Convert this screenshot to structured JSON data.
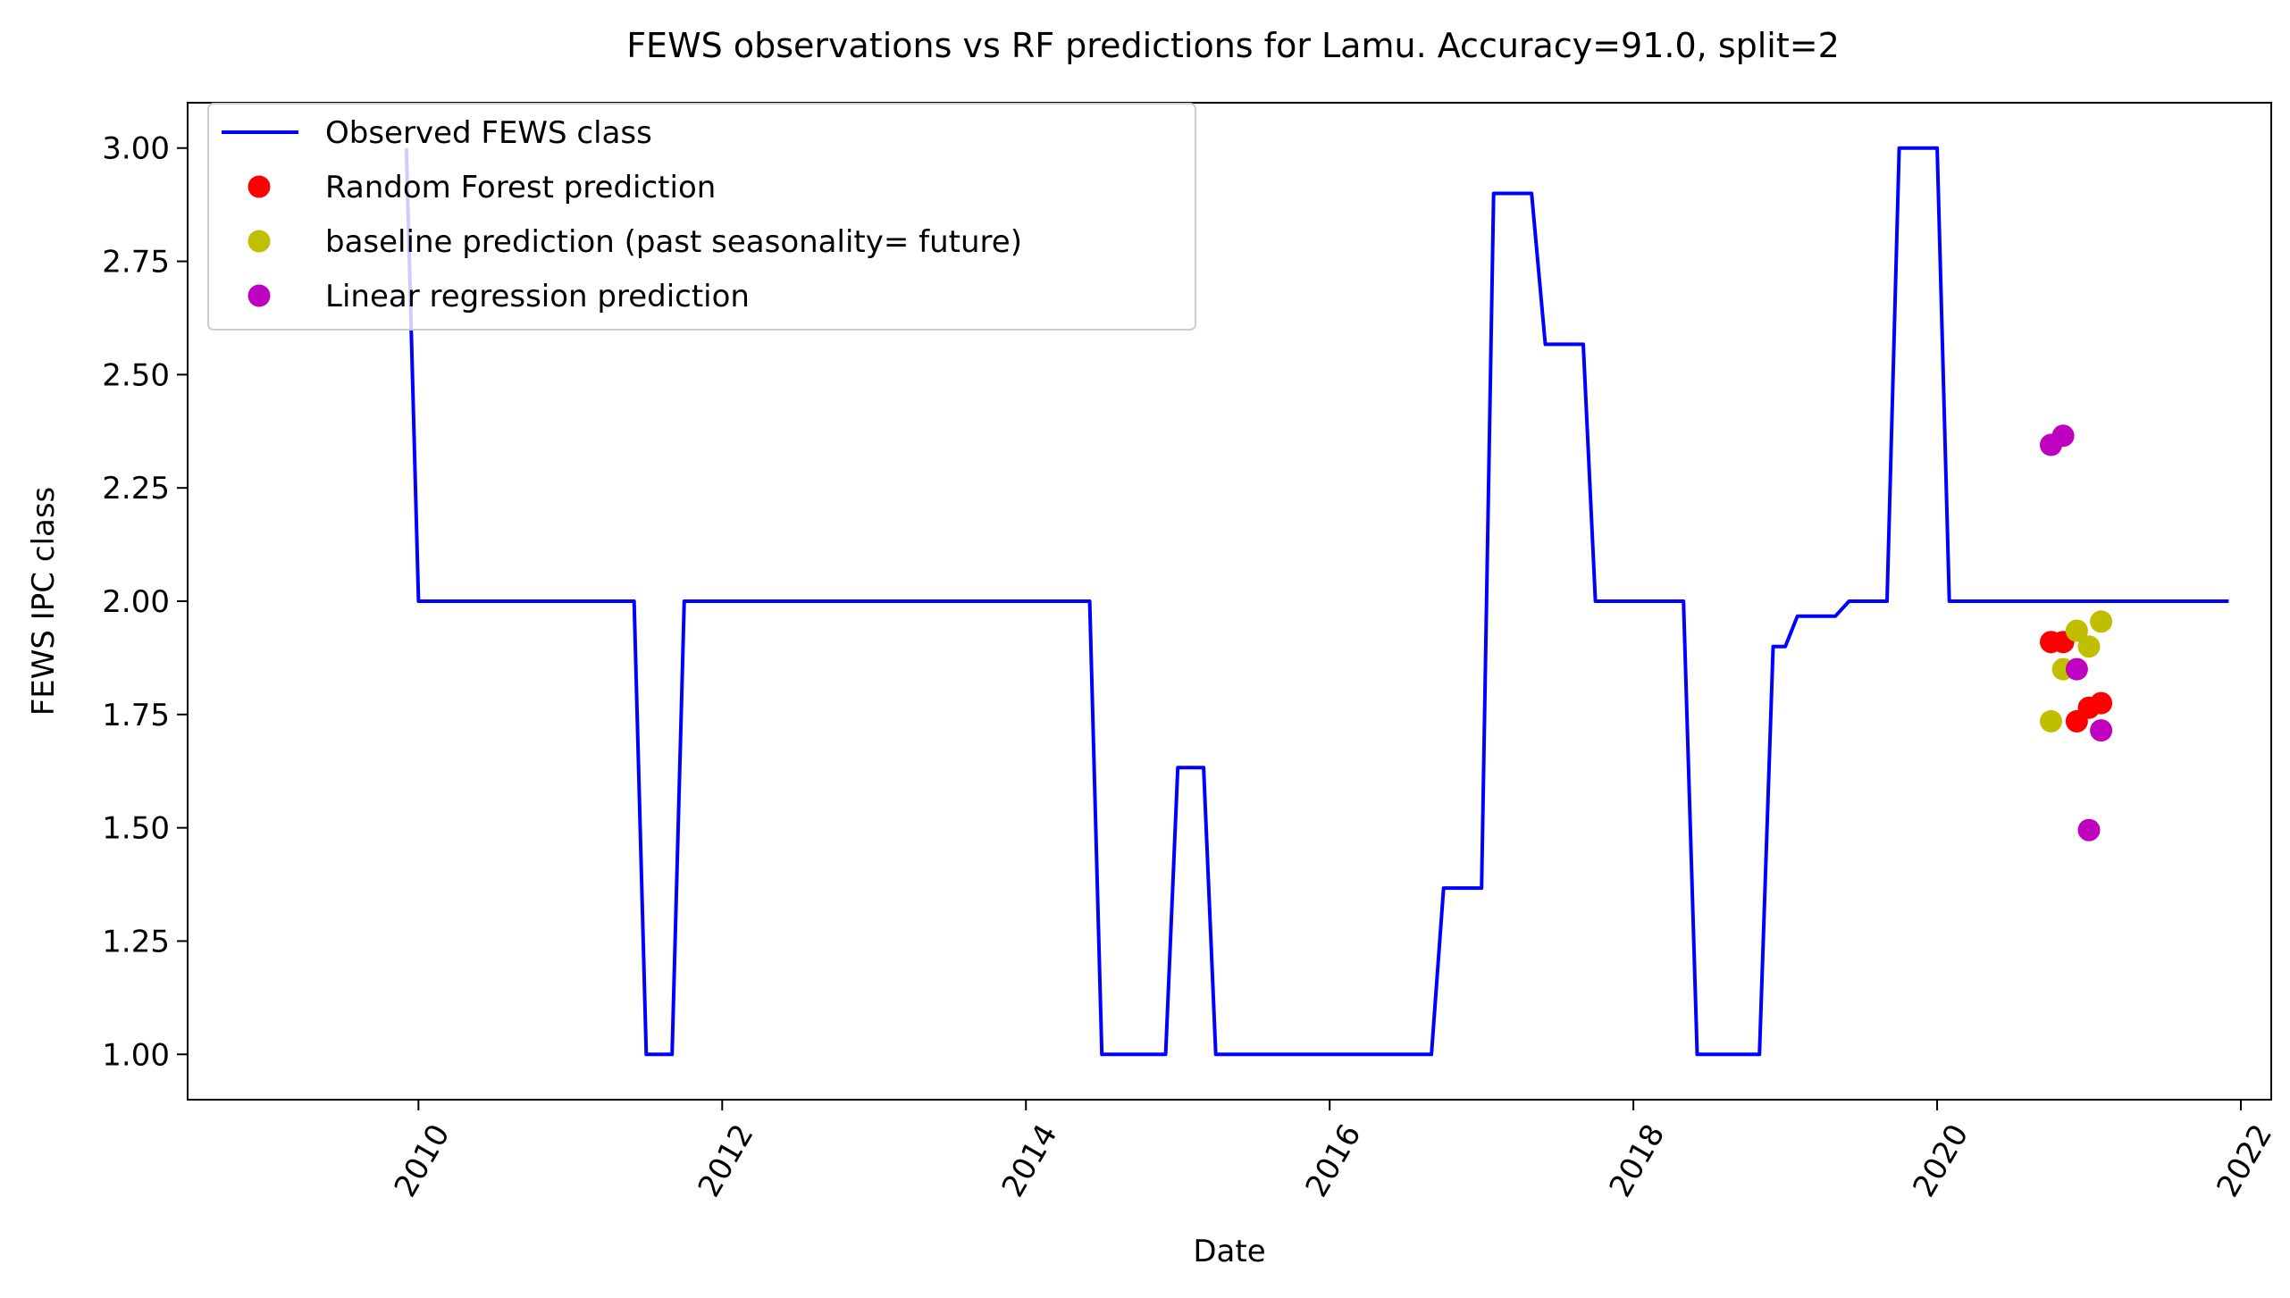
{
  "chart_data": {
    "type": "line",
    "title": "FEWS observations vs RF predictions for Lamu. Accuracy=91.0, split=2",
    "xlabel": "Date",
    "ylabel": "FEWS IPC class",
    "xlim": [
      2008.48,
      2022.2
    ],
    "ylim": [
      0.9,
      3.1
    ],
    "x_ticks": [
      2010,
      2012,
      2014,
      2016,
      2018,
      2020,
      2022
    ],
    "x_tick_labels": [
      "2010",
      "2012",
      "2014",
      "2016",
      "2018",
      "2020",
      "2022"
    ],
    "y_ticks": [
      1.0,
      1.25,
      1.5,
      1.75,
      2.0,
      2.25,
      2.5,
      2.75,
      3.0
    ],
    "y_tick_labels": [
      "1.00",
      "1.25",
      "1.50",
      "1.75",
      "2.00",
      "2.25",
      "2.50",
      "2.75",
      "3.00"
    ],
    "grid": false,
    "legend_position": "top-left",
    "series": [
      {
        "name": "Observed FEWS class",
        "type": "line",
        "color": "#0000ff",
        "points": [
          [
            2009.92,
            3.0
          ],
          [
            2010.0,
            2.0
          ],
          [
            2011.42,
            2.0
          ],
          [
            2011.5,
            1.0
          ],
          [
            2011.67,
            1.0
          ],
          [
            2011.75,
            2.0
          ],
          [
            2014.42,
            2.0
          ],
          [
            2014.5,
            1.0
          ],
          [
            2014.92,
            1.0
          ],
          [
            2015.0,
            1.633
          ],
          [
            2015.17,
            1.633
          ],
          [
            2015.25,
            1.0
          ],
          [
            2016.67,
            1.0
          ],
          [
            2016.75,
            1.367
          ],
          [
            2017.0,
            1.367
          ],
          [
            2017.08,
            2.9
          ],
          [
            2017.33,
            2.9
          ],
          [
            2017.42,
            2.567
          ],
          [
            2017.67,
            2.567
          ],
          [
            2017.75,
            2.0
          ],
          [
            2018.33,
            2.0
          ],
          [
            2018.42,
            1.0
          ],
          [
            2018.83,
            1.0
          ],
          [
            2018.92,
            1.9
          ],
          [
            2019.0,
            1.9
          ],
          [
            2019.08,
            1.967
          ],
          [
            2019.33,
            1.967
          ],
          [
            2019.42,
            2.0
          ],
          [
            2019.67,
            2.0
          ],
          [
            2019.75,
            3.0
          ],
          [
            2020.0,
            3.0
          ],
          [
            2020.08,
            2.0
          ],
          [
            2021.92,
            2.0
          ]
        ]
      },
      {
        "name": "Random Forest prediction",
        "type": "scatter",
        "color": "#ff0000",
        "points": [
          [
            2020.75,
            1.91
          ],
          [
            2020.83,
            1.91
          ],
          [
            2020.92,
            1.735
          ],
          [
            2021.0,
            1.765
          ],
          [
            2021.08,
            1.775
          ]
        ]
      },
      {
        "name": "baseline prediction (past seasonality= future)",
        "type": "scatter",
        "color": "#bfbf00",
        "points": [
          [
            2020.75,
            1.735
          ],
          [
            2020.83,
            1.85
          ],
          [
            2020.92,
            1.935
          ],
          [
            2021.0,
            1.9
          ],
          [
            2021.08,
            1.955
          ]
        ]
      },
      {
        "name": "Linear regression prediction",
        "type": "scatter",
        "color": "#bf00bf",
        "points": [
          [
            2020.75,
            2.345
          ],
          [
            2020.83,
            2.365
          ],
          [
            2020.92,
            1.85
          ],
          [
            2021.0,
            1.495
          ],
          [
            2021.08,
            1.715
          ]
        ]
      }
    ]
  }
}
